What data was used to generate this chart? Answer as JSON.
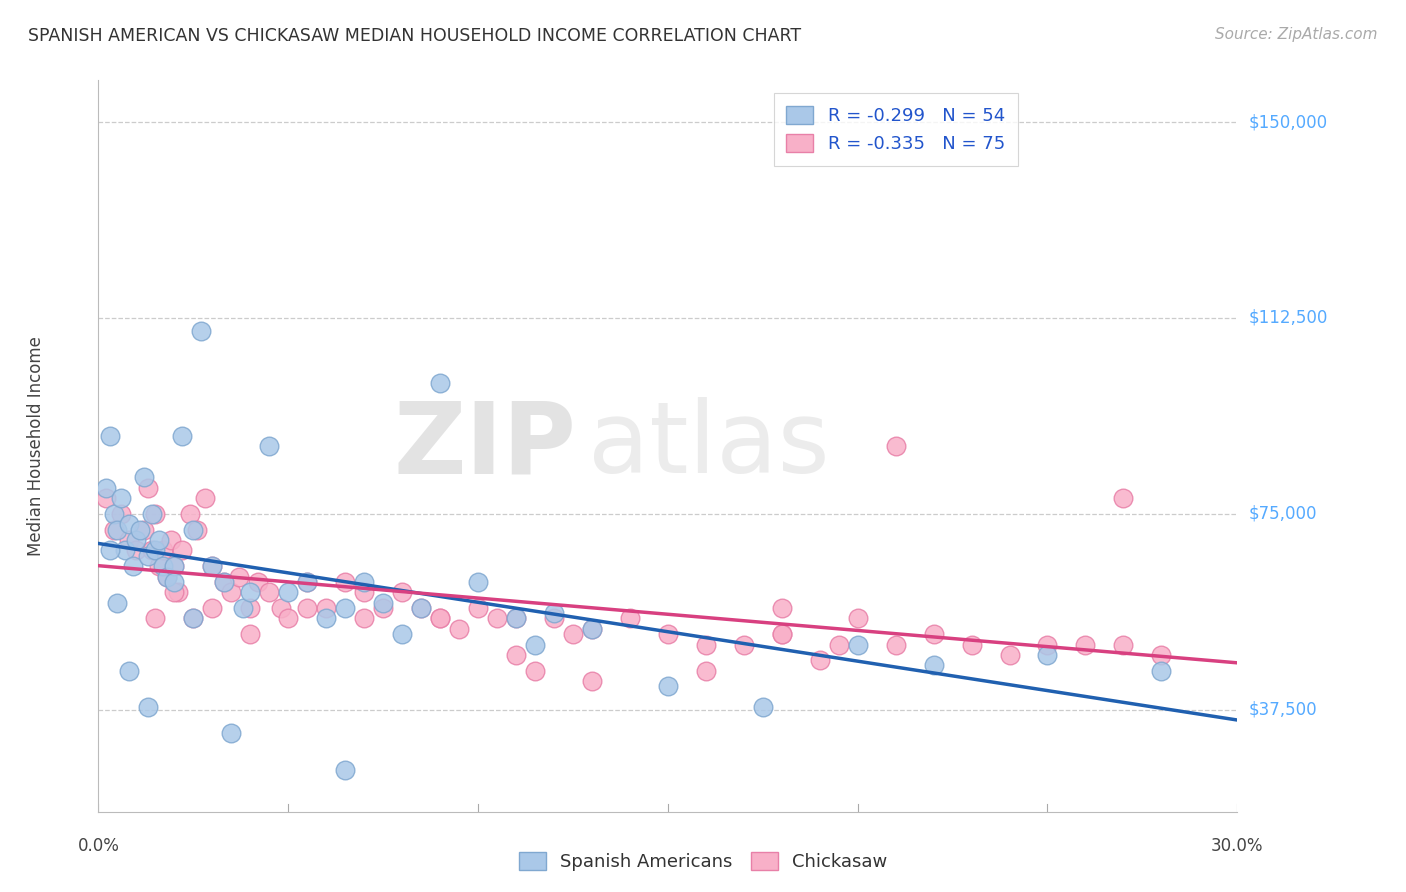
{
  "title": "SPANISH AMERICAN VS CHICKASAW MEDIAN HOUSEHOLD INCOME CORRELATION CHART",
  "source": "Source: ZipAtlas.com",
  "ylabel": "Median Household Income",
  "ytick_labels": [
    "$37,500",
    "$75,000",
    "$112,500",
    "$150,000"
  ],
  "ytick_values": [
    37500,
    75000,
    112500,
    150000
  ],
  "ymin": 18000,
  "ymax": 158000,
  "xmin": 0.0,
  "xmax": 0.3,
  "blue_line_color": "#2060b0",
  "pink_line_color": "#d84080",
  "blue_scatter_color": "#aac8e8",
  "pink_scatter_color": "#f8b0c8",
  "blue_edge_color": "#80a8d0",
  "pink_edge_color": "#e880a8",
  "watermark_zip": "ZIP",
  "watermark_atlas": "atlas",
  "blue_label": "R = -0.299   N = 54",
  "pink_label": "R = -0.335   N = 75",
  "bottom_blue_label": "Spanish Americans",
  "bottom_pink_label": "Chickasaw",
  "blue_x": [
    0.002,
    0.003,
    0.004,
    0.005,
    0.006,
    0.007,
    0.008,
    0.009,
    0.01,
    0.011,
    0.012,
    0.013,
    0.014,
    0.015,
    0.016,
    0.017,
    0.018,
    0.02,
    0.022,
    0.025,
    0.027,
    0.03,
    0.033,
    0.038,
    0.04,
    0.045,
    0.05,
    0.055,
    0.06,
    0.065,
    0.07,
    0.075,
    0.08,
    0.085,
    0.09,
    0.1,
    0.11,
    0.12,
    0.13,
    0.15,
    0.175,
    0.2,
    0.22,
    0.25,
    0.28,
    0.003,
    0.005,
    0.008,
    0.013,
    0.02,
    0.025,
    0.035,
    0.065,
    0.115
  ],
  "blue_y": [
    80000,
    90000,
    75000,
    72000,
    78000,
    68000,
    73000,
    65000,
    70000,
    72000,
    82000,
    67000,
    75000,
    68000,
    70000,
    65000,
    63000,
    65000,
    90000,
    72000,
    110000,
    65000,
    62000,
    57000,
    60000,
    88000,
    60000,
    62000,
    55000,
    57000,
    62000,
    58000,
    52000,
    57000,
    100000,
    62000,
    55000,
    56000,
    53000,
    42000,
    38000,
    50000,
    46000,
    48000,
    45000,
    68000,
    58000,
    45000,
    38000,
    62000,
    55000,
    33000,
    26000,
    50000
  ],
  "pink_x": [
    0.002,
    0.004,
    0.006,
    0.008,
    0.01,
    0.012,
    0.013,
    0.014,
    0.015,
    0.016,
    0.017,
    0.018,
    0.019,
    0.02,
    0.021,
    0.022,
    0.024,
    0.026,
    0.028,
    0.03,
    0.033,
    0.035,
    0.037,
    0.04,
    0.042,
    0.045,
    0.048,
    0.05,
    0.055,
    0.06,
    0.065,
    0.07,
    0.075,
    0.08,
    0.085,
    0.09,
    0.095,
    0.1,
    0.105,
    0.11,
    0.115,
    0.12,
    0.125,
    0.13,
    0.14,
    0.15,
    0.16,
    0.17,
    0.18,
    0.19,
    0.2,
    0.21,
    0.22,
    0.23,
    0.24,
    0.25,
    0.26,
    0.27,
    0.28,
    0.015,
    0.02,
    0.025,
    0.03,
    0.04,
    0.055,
    0.07,
    0.09,
    0.11,
    0.16,
    0.18,
    0.195,
    0.21,
    0.18,
    0.27,
    0.13
  ],
  "pink_y": [
    78000,
    72000,
    75000,
    70000,
    68000,
    72000,
    80000,
    68000,
    75000,
    65000,
    68000,
    63000,
    70000,
    65000,
    60000,
    68000,
    75000,
    72000,
    78000,
    65000,
    62000,
    60000,
    63000,
    57000,
    62000,
    60000,
    57000,
    55000,
    62000,
    57000,
    62000,
    55000,
    57000,
    60000,
    57000,
    55000,
    53000,
    57000,
    55000,
    48000,
    45000,
    55000,
    52000,
    53000,
    55000,
    52000,
    50000,
    50000,
    52000,
    47000,
    55000,
    50000,
    52000,
    50000,
    48000,
    50000,
    50000,
    50000,
    48000,
    55000,
    60000,
    55000,
    57000,
    52000,
    57000,
    60000,
    55000,
    55000,
    45000,
    52000,
    50000,
    88000,
    57000,
    78000,
    43000
  ]
}
